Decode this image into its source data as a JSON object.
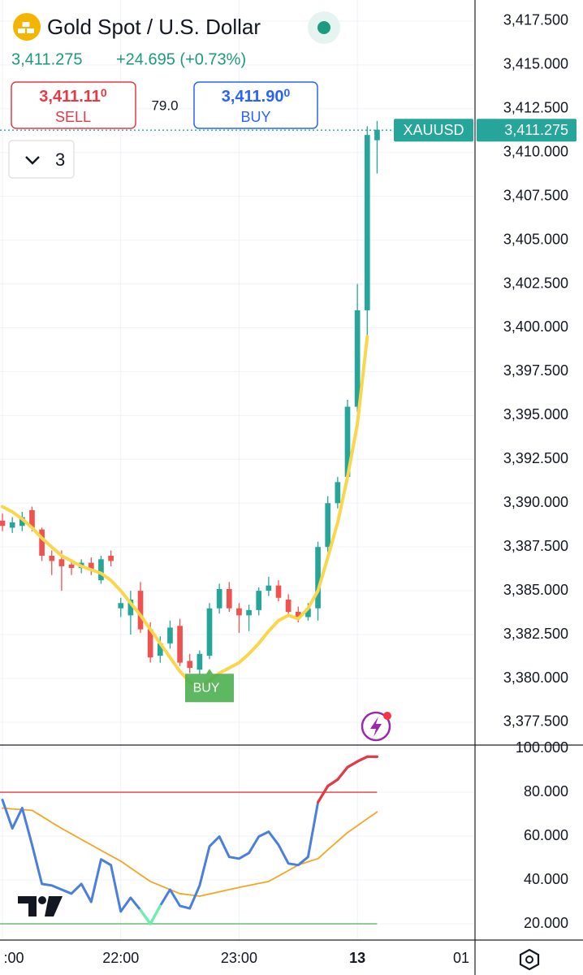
{
  "header": {
    "title": "Gold Spot / U.S. Dollar",
    "price": "3,411.275",
    "change": "+24.695 (+0.73%)",
    "sell": {
      "price": "3,411.11",
      "pip": "0",
      "label": "SELL"
    },
    "spread": "79.0",
    "buy": {
      "price": "3,411.90",
      "pip": "0",
      "label": "BUY"
    },
    "indicators": "3"
  },
  "chart_data": {
    "type": "candlestick",
    "x": [
      0,
      1,
      2,
      3,
      4,
      5,
      6,
      7,
      8,
      9,
      10,
      11,
      12,
      13,
      14,
      15,
      16,
      17,
      18,
      19,
      20,
      21,
      22,
      23,
      24,
      25,
      26,
      27,
      28,
      29,
      30,
      31,
      32,
      33,
      34,
      35,
      36,
      37,
      38
    ],
    "open": [
      3389.0,
      3388.6,
      3388.7,
      3389.6,
      3388.5,
      3387.0,
      3386.8,
      3386.5,
      3386.3,
      3386.6,
      3385.6,
      3387.0,
      3384.0,
      3383.6,
      3385.0,
      3382.8,
      3381.3,
      3382.0,
      3383.0,
      3381.0,
      3380.5,
      3381.3,
      3384.0,
      3385.1,
      3384.0,
      3383.6,
      3383.9,
      3385.0,
      3385.3,
      3384.5,
      3383.8,
      3383.5,
      3384.0,
      3387.5,
      3390.0,
      3391.5,
      3395.5,
      3401.0,
      3410.7
    ],
    "high": [
      3389.4,
      3389.2,
      3389.5,
      3389.8,
      3388.6,
      3387.3,
      3387.3,
      3386.8,
      3386.8,
      3386.9,
      3387.0,
      3387.3,
      3384.6,
      3385.0,
      3385.5,
      3383.2,
      3382.4,
      3383.3,
      3383.4,
      3381.4,
      3381.6,
      3384.3,
      3385.4,
      3385.5,
      3384.3,
      3384.2,
      3385.2,
      3385.8,
      3385.6,
      3384.8,
      3384.1,
      3384.3,
      3387.8,
      3390.4,
      3391.5,
      3395.9,
      3402.5,
      3411.5,
      3411.8
    ],
    "low": [
      3388.4,
      3388.3,
      3388.4,
      3388.4,
      3386.7,
      3385.9,
      3385.0,
      3385.9,
      3386.0,
      3385.9,
      3385.4,
      3386.4,
      3383.5,
      3382.5,
      3382.6,
      3380.9,
      3380.9,
      3381.7,
      3380.7,
      3380.3,
      3380.2,
      3381.1,
      3383.7,
      3383.8,
      3382.6,
      3382.7,
      3383.6,
      3384.7,
      3384.4,
      3383.6,
      3383.2,
      3383.3,
      3383.3,
      3387.2,
      3389.7,
      3391.2,
      3395.2,
      3399.5,
      3408.8
    ],
    "close": [
      3388.7,
      3388.9,
      3389.2,
      3388.6,
      3387.0,
      3386.7,
      3386.4,
      3386.3,
      3386.6,
      3386.2,
      3386.8,
      3386.7,
      3384.3,
      3384.5,
      3382.8,
      3381.2,
      3382.0,
      3382.9,
      3380.9,
      3380.6,
      3381.4,
      3384.0,
      3385.1,
      3384.0,
      3383.6,
      3383.9,
      3385.0,
      3385.3,
      3384.6,
      3383.8,
      3383.5,
      3384.0,
      3387.5,
      3390.0,
      3391.2,
      3395.5,
      3401.0,
      3411.0,
      3411.3
    ],
    "up_color": "#26a69a",
    "down_color": "#ef5350",
    "ma": {
      "color": "#f9d64a",
      "values": [
        3389.8,
        3389.5,
        3389.1,
        3388.6,
        3388.0,
        3387.5,
        3387.0,
        3386.7,
        3386.4,
        3386.2,
        3386.0,
        3385.6,
        3385.0,
        3384.3,
        3383.6,
        3382.8,
        3382.0,
        3381.2,
        3380.4,
        3379.8,
        3379.5,
        3379.9,
        3380.3,
        3380.6,
        3380.9,
        3381.4,
        3382.0,
        3382.7,
        3383.3,
        3383.6,
        3383.4,
        3384.0,
        3385.0,
        3386.9,
        3388.9,
        3391.5,
        3394.5,
        3399.5,
        null
      ]
    },
    "signal": {
      "x": 21,
      "label": "BUY",
      "color": "#4caf50"
    },
    "last": {
      "value": 3411.275,
      "label": "3,411.275",
      "symbol": "XAUUSD",
      "color": "#26a69a"
    },
    "xlim": [
      -0.25,
      47.93
    ],
    "ylim": [
      3376.2,
      3418.7
    ],
    "yticks": [
      {
        "value": 3377.5,
        "label": "3,377.500"
      },
      {
        "value": 3380,
        "label": "3,380.000"
      },
      {
        "value": 3382.5,
        "label": "3,382.500"
      },
      {
        "value": 3385,
        "label": "3,385.000"
      },
      {
        "value": 3387.5,
        "label": "3,387.500"
      },
      {
        "value": 3390,
        "label": "3,390.000"
      },
      {
        "value": 3392.5,
        "label": "3,392.500"
      },
      {
        "value": 3395,
        "label": "3,395.000"
      },
      {
        "value": 3397.5,
        "label": "3,397.500"
      },
      {
        "value": 3400,
        "label": "3,400.000"
      },
      {
        "value": 3402.5,
        "label": "3,402.500"
      },
      {
        "value": 3405,
        "label": "3,405.000"
      },
      {
        "value": 3407.5,
        "label": "3,407.500"
      },
      {
        "value": 3410,
        "label": "3,410.000"
      },
      {
        "value": 3412.5,
        "label": "3,412.500"
      },
      {
        "value": 3415,
        "label": "3,415.000"
      },
      {
        "value": 3417.5,
        "label": "3,417.500"
      }
    ],
    "xticks": [
      {
        "value": 0,
        "label": ":00"
      },
      {
        "value": 12,
        "label": "22:00"
      },
      {
        "value": 24,
        "label": "23:00"
      },
      {
        "value": 36,
        "label": "13"
      },
      {
        "value": 48,
        "label": "01"
      }
    ],
    "grid": true,
    "rsi": {
      "ylim": [
        12.6,
        101.5
      ],
      "yticks": [
        {
          "value": 20,
          "label": "20.000"
        },
        {
          "value": 40,
          "label": "40.000"
        },
        {
          "value": 60,
          "label": "60.000"
        },
        {
          "value": 80,
          "label": "80.000"
        },
        {
          "value": 100,
          "label": "100.000"
        }
      ],
      "upper": 80,
      "lower": 20,
      "upper_color": "#e53945",
      "lower_color": "#4caf50",
      "hot_color": "#e53945",
      "cold_color": "#69f0ae",
      "series": [
        {
          "color": "#4a7fdc",
          "values": [
            76.5,
            63.5,
            72.8,
            56,
            38.2,
            37.5,
            35.6,
            33.8,
            38.2,
            30,
            49.4,
            46.8,
            25.6,
            31.9,
            26.3,
            20,
            28.2,
            35.6,
            28.2,
            27,
            37.5,
            55.3,
            59.8,
            50.5,
            49.7,
            52.3,
            59.8,
            62,
            56,
            47.5,
            46.8,
            50.5,
            75.4,
            82.8,
            85.8,
            91.4,
            94,
            96.2,
            96.2
          ]
        },
        {
          "color": "#f5a524",
          "values": [
            72.8,
            72.4,
            72.1,
            71.7,
            69,
            66.2,
            63.5,
            61,
            58.5,
            56,
            53.5,
            51,
            48.6,
            45.5,
            42.4,
            39.3,
            37.5,
            35.6,
            33.8,
            33.2,
            32.6,
            33.6,
            34.6,
            35.6,
            36.6,
            37.5,
            38.4,
            39.3,
            41.8,
            44.3,
            46.8,
            48.3,
            49.7,
            53.7,
            57.7,
            61.6,
            64.7,
            67.9,
            71
          ]
        }
      ]
    }
  }
}
